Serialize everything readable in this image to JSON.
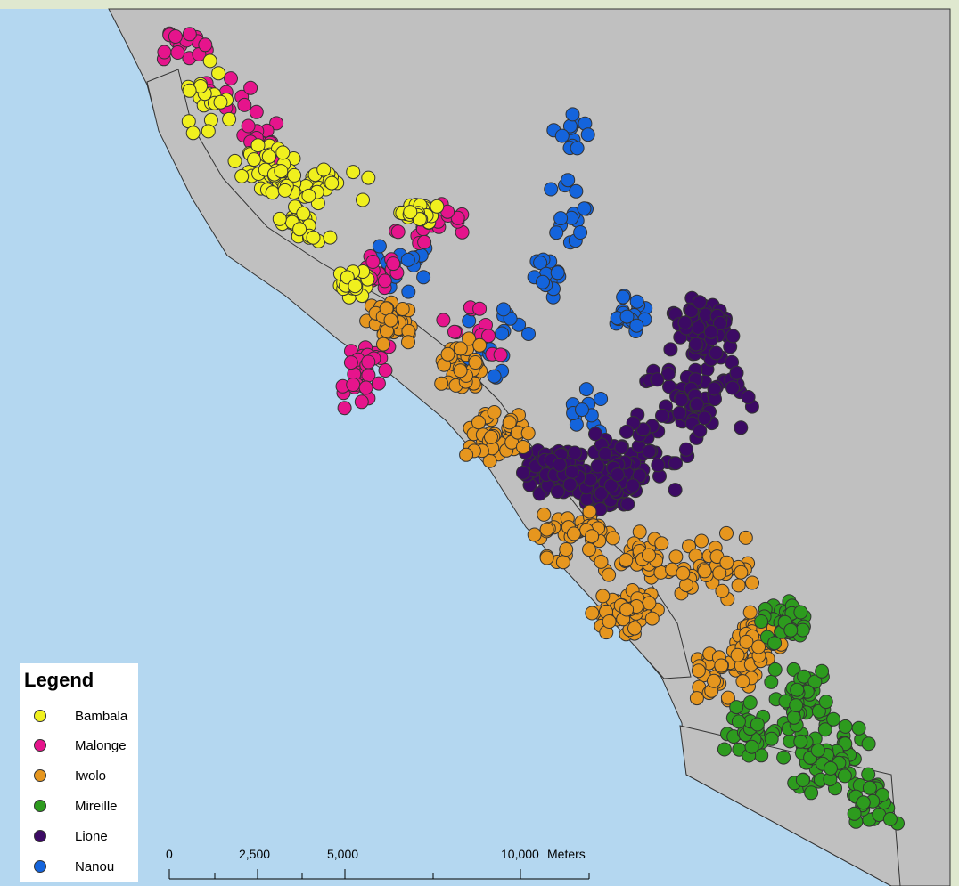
{
  "legend": {
    "title": "Legend",
    "items": [
      {
        "label": "Bambala",
        "color": "#f0f01e"
      },
      {
        "label": "Malonge",
        "color": "#e6148c"
      },
      {
        "label": "Iwolo",
        "color": "#e6961e"
      },
      {
        "label": "Mireille",
        "color": "#2d9b1e"
      },
      {
        "label": "Lione",
        "color": "#3c0a64"
      },
      {
        "label": "Nanou",
        "color": "#1464dc"
      }
    ]
  },
  "scale_bar": {
    "ticks": [
      "0",
      "2,500",
      "5,000",
      "10,000"
    ],
    "unit": "Meters"
  },
  "colors": {
    "water": "#b4d7f0",
    "land": "#c0c0c0",
    "frame": "#dfe8cf",
    "outline": "#333333"
  }
}
